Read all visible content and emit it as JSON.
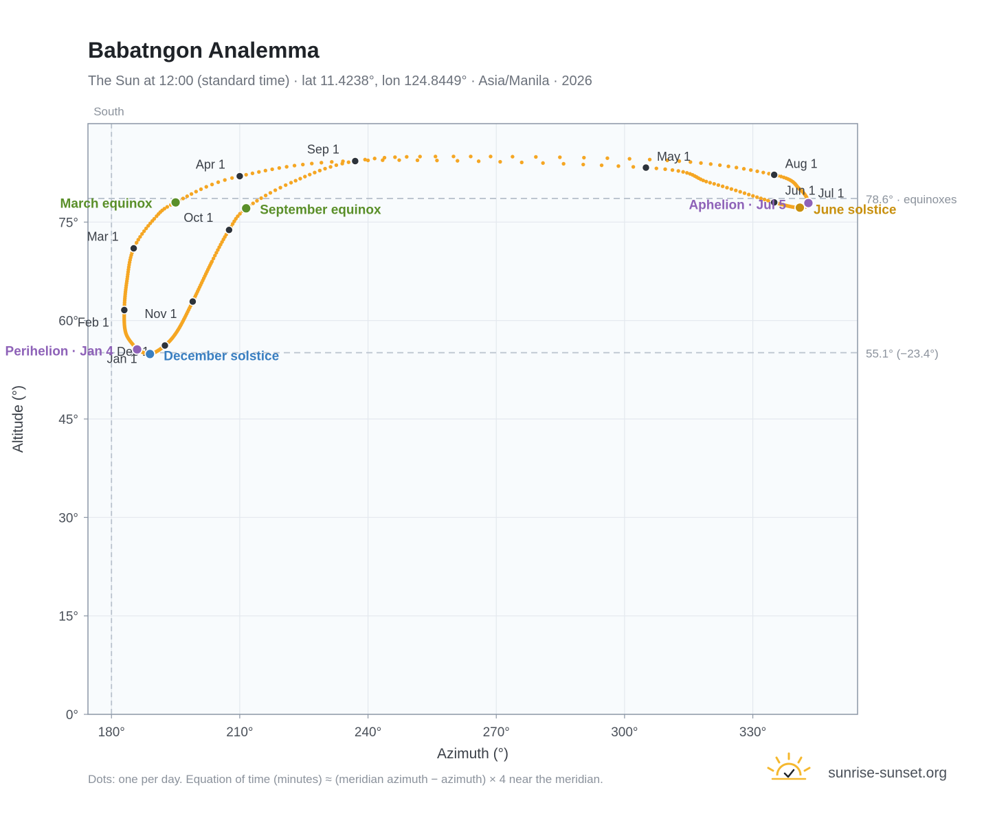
{
  "header": {
    "title": "Babatngon Analemma",
    "subtitle": "The Sun at 12:00 (standard time) · lat 11.4238°, lon 124.8449° · Asia/Manila · 2026"
  },
  "footer": {
    "note": "Dots: one per day. Equation of time (minutes) ≈ (meridian azimuth − azimuth) × 4 near the meridian.",
    "brand": "sunrise-sunset.org"
  },
  "colors": {
    "path": "#f5a623",
    "month": "#2d333b",
    "equinox": "#5a8f29",
    "solstice_dec": "#3a7fc1",
    "solstice_jun": "#c8900e",
    "apsis": "#8e62b8",
    "plot_bg": "#f8fbfd",
    "grid": "#e3e8ee",
    "frame": "#8b96a5",
    "ref_line": "#b9c2cd",
    "text": "#3a3f47",
    "muted": "#8b929c"
  },
  "chart_data": {
    "type": "scatter",
    "xlabel": "Azimuth (°)",
    "ylabel": "Altitude (°)",
    "xlim": [
      174.5,
      354.5
    ],
    "ylim": [
      0,
      90
    ],
    "x_ticks": [
      180,
      210,
      240,
      270,
      300,
      330
    ],
    "y_ticks": [
      0,
      15,
      30,
      45,
      60,
      75
    ],
    "x_tick_labels": [
      "180°",
      "210°",
      "240°",
      "270°",
      "300°",
      "330°"
    ],
    "y_tick_labels": [
      "0°",
      "15°",
      "30°",
      "45°",
      "60°",
      "75°"
    ],
    "grid": true,
    "meridian": {
      "azimuth": 180,
      "label": "South"
    },
    "reference_lines": [
      {
        "altitude": 78.6,
        "label": "78.6° · equinoxes"
      },
      {
        "altitude": 55.1,
        "label": "55.1° (−23.4°)"
      }
    ],
    "month_markers": [
      {
        "label": "Jan 1",
        "az": 186.0,
        "alt": 55.6
      },
      {
        "label": "Feb 1",
        "az": 183.0,
        "alt": 61.6
      },
      {
        "label": "Mar 1",
        "az": 185.2,
        "alt": 71.0
      },
      {
        "label": "Apr 1",
        "az": 210.0,
        "alt": 82.0
      },
      {
        "label": "May 1",
        "az": 305.0,
        "alt": 83.3
      },
      {
        "label": "Jun 1",
        "az": 335.0,
        "alt": 78.0
      },
      {
        "label": "Jul 1",
        "az": 343.0,
        "alt": 77.9
      },
      {
        "label": "Aug 1",
        "az": 335.0,
        "alt": 82.2
      },
      {
        "label": "Sep 1",
        "az": 237.0,
        "alt": 84.3
      },
      {
        "label": "Oct 1",
        "az": 207.5,
        "alt": 73.8
      },
      {
        "label": "Nov 1",
        "az": 199.0,
        "alt": 62.9
      },
      {
        "label": "Dec 1",
        "az": 192.5,
        "alt": 56.2
      }
    ],
    "special_markers": [
      {
        "label": "March equinox",
        "az": 195.0,
        "alt": 78.0,
        "kind": "equinox"
      },
      {
        "label": "September equinox",
        "az": 211.5,
        "alt": 77.1,
        "kind": "equinox"
      },
      {
        "label": "December solstice",
        "az": 189.0,
        "alt": 54.9,
        "kind": "solstice_dec"
      },
      {
        "label": "June solstice",
        "az": 341.0,
        "alt": 77.2,
        "kind": "solstice_jun"
      },
      {
        "label": "Perihelion · Jan 4",
        "az": 186.0,
        "alt": 55.6,
        "kind": "apsis"
      },
      {
        "label": "Aphelion · Jul 5",
        "az": 343.0,
        "alt": 77.9,
        "kind": "apsis"
      }
    ],
    "path_anchors": [
      {
        "day": 0,
        "az": 186.0,
        "alt": 55.6
      },
      {
        "day": 15,
        "az": 183.4,
        "alt": 58.0
      },
      {
        "day": 31,
        "az": 183.0,
        "alt": 61.6
      },
      {
        "day": 45,
        "az": 183.6,
        "alt": 66.0
      },
      {
        "day": 59,
        "az": 185.2,
        "alt": 71.0
      },
      {
        "day": 70,
        "az": 190.0,
        "alt": 75.5
      },
      {
        "day": 78,
        "az": 195.0,
        "alt": 78.0
      },
      {
        "day": 90,
        "az": 210.0,
        "alt": 82.0
      },
      {
        "day": 105,
        "az": 240.0,
        "alt": 84.4
      },
      {
        "day": 120,
        "az": 305.0,
        "alt": 83.3
      },
      {
        "day": 135,
        "az": 320.0,
        "alt": 81.0
      },
      {
        "day": 151,
        "az": 335.0,
        "alt": 78.0
      },
      {
        "day": 171,
        "az": 341.0,
        "alt": 77.2
      },
      {
        "day": 181,
        "az": 343.0,
        "alt": 77.9
      },
      {
        "day": 195,
        "az": 341.0,
        "alt": 80.0
      },
      {
        "day": 212,
        "az": 335.0,
        "alt": 82.2
      },
      {
        "day": 225,
        "az": 310.0,
        "alt": 84.4
      },
      {
        "day": 235,
        "az": 260.0,
        "alt": 85.0
      },
      {
        "day": 243,
        "az": 237.0,
        "alt": 84.3
      },
      {
        "day": 255,
        "az": 222.0,
        "alt": 81.0
      },
      {
        "day": 265,
        "az": 211.5,
        "alt": 77.1
      },
      {
        "day": 273,
        "az": 207.5,
        "alt": 73.8
      },
      {
        "day": 285,
        "az": 203.5,
        "alt": 69.0
      },
      {
        "day": 304,
        "az": 199.0,
        "alt": 62.9
      },
      {
        "day": 320,
        "az": 195.5,
        "alt": 58.5
      },
      {
        "day": 334,
        "az": 192.5,
        "alt": 56.2
      },
      {
        "day": 354,
        "az": 189.0,
        "alt": 54.9
      },
      {
        "day": 365,
        "az": 186.0,
        "alt": 55.6
      }
    ]
  }
}
